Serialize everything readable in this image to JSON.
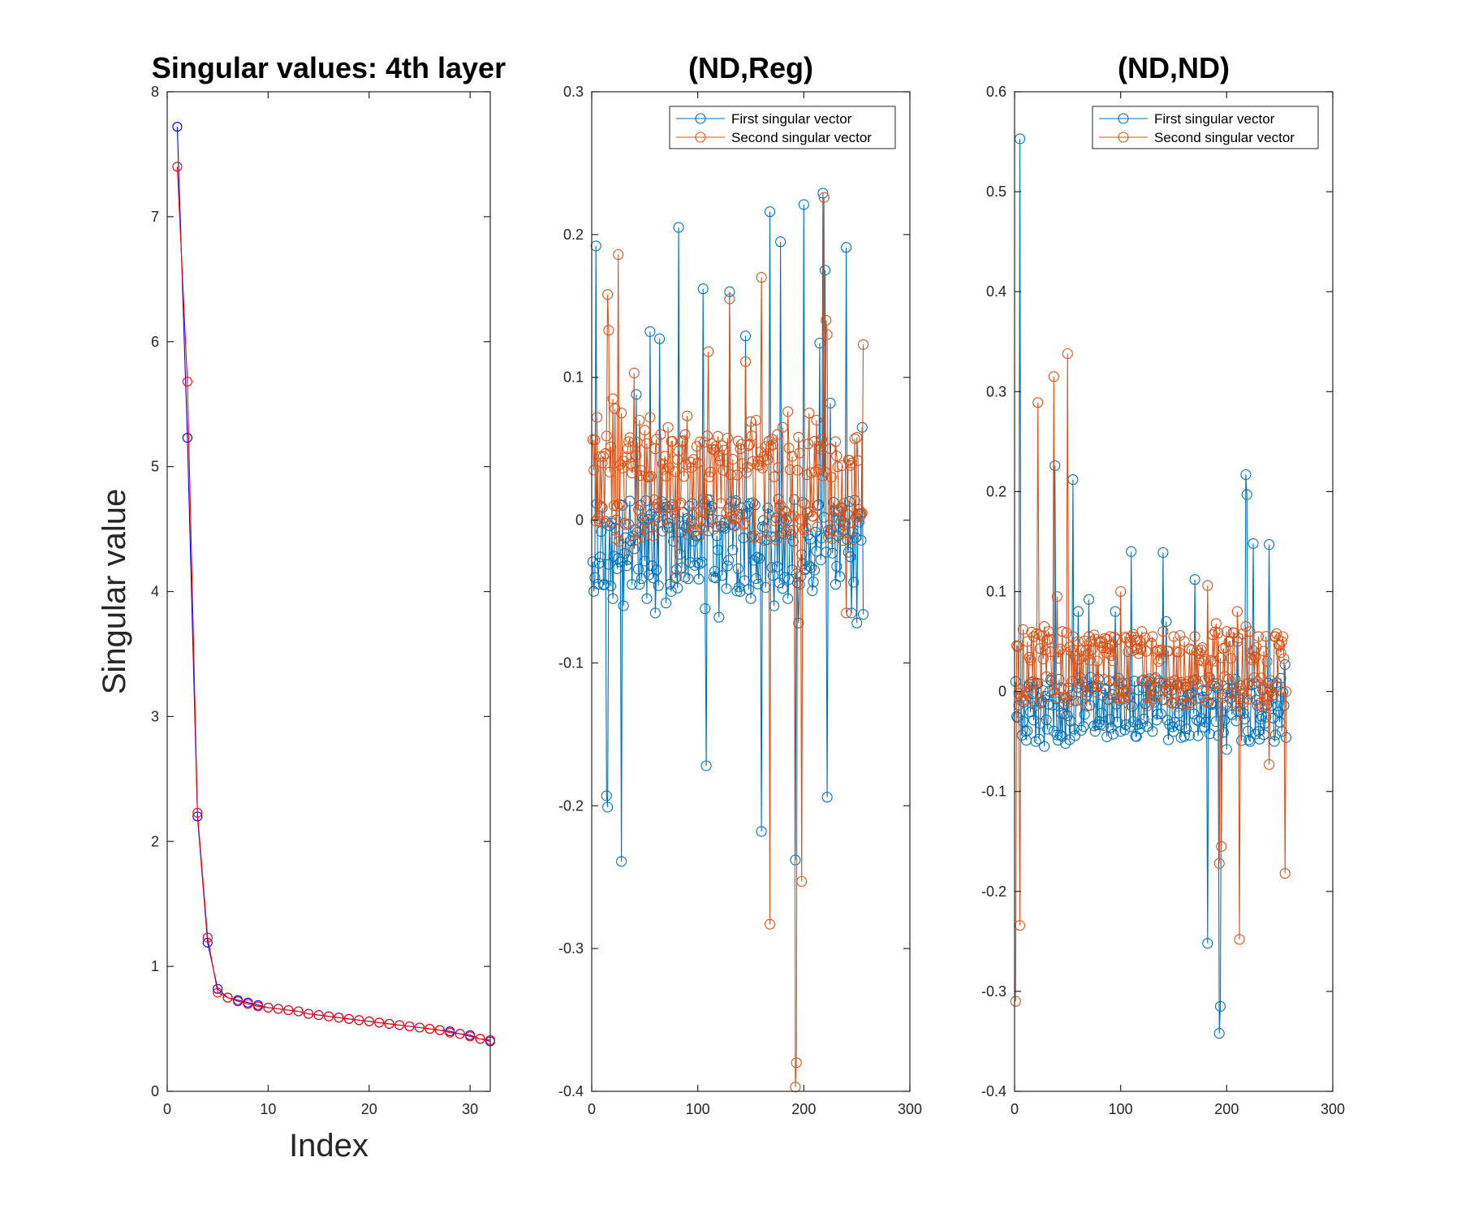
{
  "chart_data": [
    {
      "type": "line",
      "title": "Singular values: 4th layer",
      "xlabel": "Index",
      "ylabel": "Singular value",
      "xlim": [
        0,
        32
      ],
      "ylim": [
        0,
        8
      ],
      "xticks": [
        0,
        10,
        20,
        30
      ],
      "yticks": [
        0,
        1,
        2,
        3,
        4,
        5,
        6,
        7,
        8
      ],
      "grid": false,
      "legend": "none",
      "marker": "circle",
      "series": [
        {
          "color": "#0000ff",
          "x": [
            1,
            2,
            3,
            4,
            5,
            6,
            7,
            8,
            9,
            10,
            11,
            12,
            13,
            14,
            15,
            16,
            17,
            18,
            19,
            20,
            21,
            22,
            23,
            24,
            25,
            26,
            27,
            28,
            29,
            30,
            31,
            32
          ],
          "y": [
            7.72,
            5.23,
            2.2,
            1.19,
            0.82,
            0.75,
            0.73,
            0.71,
            0.69,
            0.67,
            0.66,
            0.65,
            0.64,
            0.62,
            0.61,
            0.6,
            0.59,
            0.58,
            0.57,
            0.56,
            0.55,
            0.54,
            0.53,
            0.52,
            0.51,
            0.5,
            0.49,
            0.48,
            0.46,
            0.45,
            0.42,
            0.4
          ]
        },
        {
          "color": "#ff0000",
          "x": [
            1,
            2,
            3,
            4,
            5,
            6,
            7,
            8,
            9,
            10,
            11,
            12,
            13,
            14,
            15,
            16,
            17,
            18,
            19,
            20,
            21,
            22,
            23,
            24,
            25,
            26,
            27,
            28,
            29,
            30,
            31,
            32
          ],
          "y": [
            7.4,
            5.68,
            2.23,
            1.23,
            0.79,
            0.75,
            0.72,
            0.7,
            0.68,
            0.67,
            0.66,
            0.65,
            0.64,
            0.62,
            0.61,
            0.6,
            0.59,
            0.58,
            0.57,
            0.56,
            0.55,
            0.54,
            0.53,
            0.52,
            0.51,
            0.5,
            0.49,
            0.47,
            0.46,
            0.44,
            0.42,
            0.41
          ]
        }
      ]
    },
    {
      "type": "line",
      "title": "(ND,Reg)",
      "xlabel": "",
      "ylabel": "",
      "xlim": [
        0,
        300
      ],
      "ylim": [
        -0.4,
        0.3
      ],
      "xticks": [
        0,
        100,
        200,
        300
      ],
      "yticks": [
        -0.4,
        -0.3,
        -0.2,
        -0.1,
        0,
        0.1,
        0.2,
        0.3
      ],
      "grid": false,
      "legend": "top-right",
      "marker": "circle",
      "n_points": 256,
      "series": [
        {
          "name": "First singular vector",
          "color": "#0072bd",
          "spikes": [
            [
              4,
              0.192
            ],
            [
              12,
              -0.045
            ],
            [
              14,
              -0.193
            ],
            [
              15,
              -0.201
            ],
            [
              20,
              -0.055
            ],
            [
              28,
              -0.239
            ],
            [
              30,
              -0.06
            ],
            [
              38,
              -0.045
            ],
            [
              42,
              0.088
            ],
            [
              45,
              -0.045
            ],
            [
              52,
              -0.055
            ],
            [
              55,
              0.132
            ],
            [
              60,
              -0.065
            ],
            [
              64,
              0.127
            ],
            [
              70,
              -0.058
            ],
            [
              82,
              0.205
            ],
            [
              88,
              -0.04
            ],
            [
              100,
              -0.03
            ],
            [
              105,
              0.162
            ],
            [
              107,
              -0.062
            ],
            [
              108,
              -0.172
            ],
            [
              115,
              -0.04
            ],
            [
              120,
              -0.068
            ],
            [
              130,
              0.16
            ],
            [
              140,
              -0.05
            ],
            [
              145,
              0.129
            ],
            [
              150,
              -0.055
            ],
            [
              160,
              -0.218
            ],
            [
              168,
              0.216
            ],
            [
              172,
              -0.06
            ],
            [
              178,
              0.195
            ],
            [
              185,
              -0.055
            ],
            [
              192,
              -0.238
            ],
            [
              195,
              -0.072
            ],
            [
              200,
              0.221
            ],
            [
              210,
              -0.035
            ],
            [
              215,
              0.124
            ],
            [
              218,
              0.229
            ],
            [
              220,
              0.175
            ],
            [
              222,
              -0.194
            ],
            [
              225,
              0.082
            ],
            [
              230,
              -0.045
            ],
            [
              240,
              0.191
            ],
            [
              245,
              -0.065
            ],
            [
              250,
              -0.072
            ],
            [
              255,
              0.065
            ],
            [
              256,
              -0.066
            ]
          ]
        },
        {
          "name": "Second singular vector",
          "color": "#d95319",
          "spikes": [
            [
              2,
              0.035
            ],
            [
              5,
              0.072
            ],
            [
              10,
              0.04
            ],
            [
              15,
              0.158
            ],
            [
              16,
              0.133
            ],
            [
              20,
              0.085
            ],
            [
              22,
              0.078
            ],
            [
              25,
              0.186
            ],
            [
              28,
              0.075
            ],
            [
              35,
              0.055
            ],
            [
              40,
              0.103
            ],
            [
              45,
              0.07
            ],
            [
              50,
              0.063
            ],
            [
              55,
              0.072
            ],
            [
              60,
              0.05
            ],
            [
              65,
              0.06
            ],
            [
              72,
              0.065
            ],
            [
              80,
              -0.04
            ],
            [
              85,
              0.055
            ],
            [
              90,
              0.073
            ],
            [
              100,
              0.04
            ],
            [
              110,
              0.118
            ],
            [
              120,
              0.045
            ],
            [
              130,
              0.155
            ],
            [
              140,
              0.05
            ],
            [
              145,
              0.111
            ],
            [
              150,
              0.069
            ],
            [
              155,
              0.07
            ],
            [
              160,
              0.17
            ],
            [
              165,
              0.045
            ],
            [
              168,
              -0.283
            ],
            [
              175,
              0.06
            ],
            [
              180,
              0.065
            ],
            [
              185,
              0.076
            ],
            [
              192,
              -0.397
            ],
            [
              193,
              -0.38
            ],
            [
              198,
              -0.253
            ],
            [
              205,
              0.075
            ],
            [
              212,
              0.07
            ],
            [
              219,
              0.226
            ],
            [
              221,
              0.14
            ],
            [
              222,
              0.13
            ],
            [
              225,
              0.05
            ],
            [
              230,
              0.055
            ],
            [
              240,
              -0.065
            ],
            [
              245,
              0.04
            ],
            [
              250,
              0.058
            ],
            [
              256,
              0.123
            ]
          ]
        }
      ]
    },
    {
      "type": "line",
      "title": "(ND,ND)",
      "xlabel": "",
      "ylabel": "",
      "xlim": [
        0,
        300
      ],
      "ylim": [
        -0.4,
        0.6
      ],
      "xticks": [
        0,
        100,
        200,
        300
      ],
      "yticks": [
        -0.4,
        -0.3,
        -0.2,
        -0.1,
        0,
        0.1,
        0.2,
        0.3,
        0.4,
        0.5,
        0.6
      ],
      "grid": false,
      "legend": "top-right",
      "marker": "circle",
      "n_points": 256,
      "series": [
        {
          "name": "First singular vector",
          "color": "#0072bd",
          "spikes": [
            [
              1,
              0.01
            ],
            [
              2,
              -0.025
            ],
            [
              5,
              0.553
            ],
            [
              10,
              -0.04
            ],
            [
              20,
              -0.05
            ],
            [
              28,
              -0.055
            ],
            [
              38,
              0.226
            ],
            [
              45,
              -0.045
            ],
            [
              48,
              -0.052
            ],
            [
              55,
              0.212
            ],
            [
              60,
              0.08
            ],
            [
              65,
              -0.035
            ],
            [
              70,
              0.092
            ],
            [
              80,
              -0.03
            ],
            [
              90,
              -0.028
            ],
            [
              95,
              0.08
            ],
            [
              100,
              -0.04
            ],
            [
              110,
              0.14
            ],
            [
              115,
              -0.045
            ],
            [
              125,
              -0.035
            ],
            [
              130,
              -0.04
            ],
            [
              140,
              0.139
            ],
            [
              143,
              0.07
            ],
            [
              150,
              -0.04
            ],
            [
              160,
              -0.045
            ],
            [
              170,
              0.112
            ],
            [
              182,
              -0.252
            ],
            [
              190,
              -0.03
            ],
            [
              193,
              -0.342
            ],
            [
              194,
              -0.315
            ],
            [
              200,
              -0.058
            ],
            [
              210,
              0.05
            ],
            [
              218,
              0.217
            ],
            [
              219,
              0.197
            ],
            [
              222,
              -0.05
            ],
            [
              225,
              0.148
            ],
            [
              230,
              -0.04
            ],
            [
              240,
              0.147
            ],
            [
              245,
              -0.05
            ],
            [
              252,
              -0.04
            ],
            [
              255,
              0.027
            ],
            [
              257,
              -0.046
            ]
          ]
        },
        {
          "name": "Second singular vector",
          "color": "#d95319",
          "spikes": [
            [
              1,
              -0.31
            ],
            [
              3,
              0.045
            ],
            [
              5,
              -0.234
            ],
            [
              8,
              0.062
            ],
            [
              12,
              0.05
            ],
            [
              18,
              0.055
            ],
            [
              22,
              0.289
            ],
            [
              28,
              0.065
            ],
            [
              32,
              0.06
            ],
            [
              37,
              0.315
            ],
            [
              40,
              0.095
            ],
            [
              45,
              0.06
            ],
            [
              50,
              0.338
            ],
            [
              55,
              0.055
            ],
            [
              60,
              0.05
            ],
            [
              70,
              0.055
            ],
            [
              80,
              0.05
            ],
            [
              90,
              0.055
            ],
            [
              100,
              0.1
            ],
            [
              110,
              0.055
            ],
            [
              120,
              0.06
            ],
            [
              130,
              0.055
            ],
            [
              140,
              0.06
            ],
            [
              150,
              0.055
            ],
            [
              160,
              0.05
            ],
            [
              170,
              0.055
            ],
            [
              182,
              0.106
            ],
            [
              190,
              0.068
            ],
            [
              193,
              -0.172
            ],
            [
              195,
              -0.155
            ],
            [
              200,
              0.06
            ],
            [
              210,
              0.08
            ],
            [
              212,
              -0.248
            ],
            [
              218,
              0.065
            ],
            [
              222,
              0.06
            ],
            [
              230,
              0.055
            ],
            [
              240,
              -0.073
            ],
            [
              245,
              0.055
            ],
            [
              252,
              0.05
            ],
            [
              255,
              -0.182
            ],
            [
              258,
              0.05
            ]
          ]
        }
      ]
    }
  ]
}
